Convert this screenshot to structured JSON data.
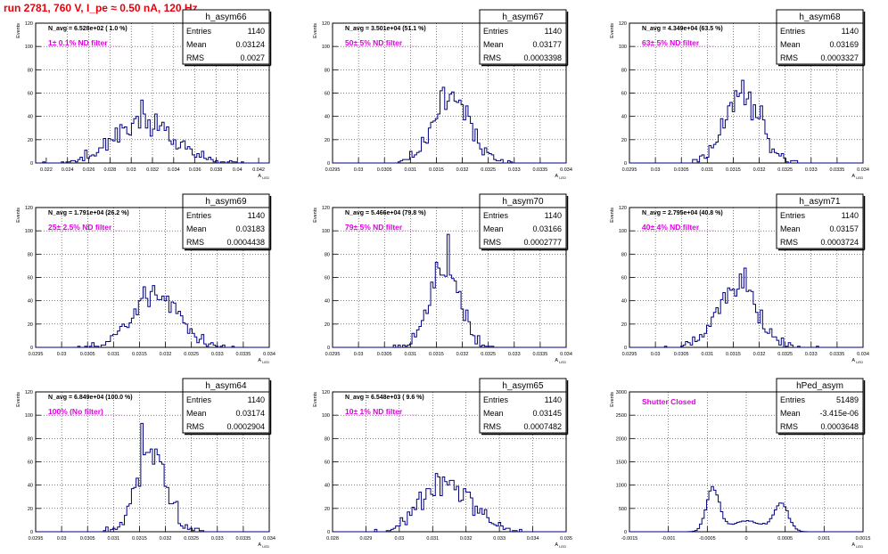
{
  "run_title": "run 2781,   760 V, I_pe ≈ 0.50 nA, 120 Hz",
  "stats_labels": {
    "entries": "Entries",
    "mean": "Mean",
    "rms": "RMS"
  },
  "colors": {
    "histogram": "#000080",
    "annotation": "#e000e0",
    "title": "#e8000b",
    "grid": "#000000"
  },
  "chart_data": [
    {
      "type": "bar",
      "name": "h_asym66",
      "navg": "N_avg = 6.528e+02 ( 1.0 %)",
      "label": "1± 0.1% ND filter",
      "entries": "1140",
      "mean": "0.03124",
      "rms": "0.0027",
      "xlabel": "A_LED",
      "ylabel": "Events",
      "xlim": [
        0.021,
        0.043
      ],
      "ylim": [
        0,
        120
      ],
      "xticks": [
        "0.022",
        "0.024",
        "0.026",
        "0.028",
        "0.03",
        "0.032",
        "0.034",
        "0.036",
        "0.038",
        "0.04",
        "0.042"
      ],
      "xtick_values": [
        0.022,
        0.024,
        0.026,
        0.028,
        0.03,
        0.032,
        0.034,
        0.036,
        0.038,
        0.04,
        0.042
      ],
      "yticks": [
        "0",
        "20",
        "40",
        "60",
        "80",
        "100",
        "120"
      ],
      "ytick_values": [
        0,
        20,
        40,
        60,
        80,
        100,
        120
      ],
      "dist": {
        "type": "gauss",
        "mean": 0.03124,
        "sigma": 0.0027,
        "count": 1140,
        "seed": 11
      }
    },
    {
      "type": "bar",
      "name": "h_asym67",
      "navg": "N_avg = 3.501e+04 (51.1 %)",
      "label": "50± 5% ND filter",
      "entries": "1140",
      "mean": "0.03177",
      "rms": "0.0003398",
      "xlabel": "A_LED",
      "ylabel": "Events",
      "xlim": [
        0.0295,
        0.034
      ],
      "ylim": [
        0,
        120
      ],
      "xticks": [
        "0.0295",
        "0.03",
        "0.0305",
        "0.031",
        "0.0315",
        "0.032",
        "0.0325",
        "0.033",
        "0.0335",
        "0.034"
      ],
      "xtick_values": [
        0.0295,
        0.03,
        0.0305,
        0.031,
        0.0315,
        0.032,
        0.0325,
        0.033,
        0.0335,
        0.034
      ],
      "yticks": [
        "0",
        "20",
        "40",
        "60",
        "80",
        "100",
        "120"
      ],
      "ytick_values": [
        0,
        20,
        40,
        60,
        80,
        100,
        120
      ],
      "dist": {
        "type": "gauss",
        "mean": 0.03177,
        "sigma": 0.0003398,
        "count": 1140,
        "seed": 23
      }
    },
    {
      "type": "bar",
      "name": "h_asym68",
      "navg": "N_avg = 4.349e+04 (63.5 %)",
      "label": "63± 5% ND filter",
      "entries": "1140",
      "mean": "0.03169",
      "rms": "0.0003327",
      "xlabel": "A_LED",
      "ylabel": "Events",
      "xlim": [
        0.0295,
        0.034
      ],
      "ylim": [
        0,
        120
      ],
      "xticks": [
        "0.0295",
        "0.03",
        "0.0305",
        "0.031",
        "0.0315",
        "0.032",
        "0.0325",
        "0.033",
        "0.0335",
        "0.034"
      ],
      "xtick_values": [
        0.0295,
        0.03,
        0.0305,
        0.031,
        0.0315,
        0.032,
        0.0325,
        0.033,
        0.0335,
        0.034
      ],
      "yticks": [
        "0",
        "20",
        "40",
        "60",
        "80",
        "100",
        "120"
      ],
      "ytick_values": [
        0,
        20,
        40,
        60,
        80,
        100,
        120
      ],
      "dist": {
        "type": "gauss",
        "mean": 0.03169,
        "sigma": 0.0003327,
        "count": 1140,
        "seed": 37
      }
    },
    {
      "type": "bar",
      "name": "h_asym69",
      "navg": "N_avg = 1.791e+04 (26.2 %)",
      "label": "25± 2.5% ND filter",
      "entries": "1140",
      "mean": "0.03183",
      "rms": "0.0004438",
      "xlabel": "A_LED",
      "ylabel": "Events",
      "xlim": [
        0.0295,
        0.034
      ],
      "ylim": [
        0,
        120
      ],
      "xticks": [
        "0.0295",
        "0.03",
        "0.0305",
        "0.031",
        "0.0315",
        "0.032",
        "0.0325",
        "0.033",
        "0.0335",
        "0.034"
      ],
      "xtick_values": [
        0.0295,
        0.03,
        0.0305,
        0.031,
        0.0315,
        0.032,
        0.0325,
        0.033,
        0.0335,
        0.034
      ],
      "yticks": [
        "0",
        "20",
        "40",
        "60",
        "80",
        "100",
        "120"
      ],
      "ytick_values": [
        0,
        20,
        40,
        60,
        80,
        100,
        120
      ],
      "dist": {
        "type": "gauss",
        "mean": 0.03183,
        "sigma": 0.0004438,
        "count": 1140,
        "seed": 41
      }
    },
    {
      "type": "bar",
      "name": "h_asym70",
      "navg": "N_avg = 5.466e+04 (79.8 %)",
      "label": "79± 5% ND filter",
      "entries": "1140",
      "mean": "0.03166",
      "rms": "0.0002777",
      "xlabel": "A_LED",
      "ylabel": "Events",
      "xlim": [
        0.0295,
        0.034
      ],
      "ylim": [
        0,
        120
      ],
      "xticks": [
        "0.0295",
        "0.03",
        "0.0305",
        "0.031",
        "0.0315",
        "0.032",
        "0.0325",
        "0.033",
        "0.0335",
        "0.034"
      ],
      "xtick_values": [
        0.0295,
        0.03,
        0.0305,
        0.031,
        0.0315,
        0.032,
        0.0325,
        0.033,
        0.0335,
        0.034
      ],
      "yticks": [
        "0",
        "20",
        "40",
        "60",
        "80",
        "100",
        "120"
      ],
      "ytick_values": [
        0,
        20,
        40,
        60,
        80,
        100,
        120
      ],
      "dist": {
        "type": "gauss",
        "mean": 0.03166,
        "sigma": 0.0002777,
        "count": 1140,
        "seed": 53
      }
    },
    {
      "type": "bar",
      "name": "h_asym71",
      "navg": "N_avg = 2.795e+04 (40.8 %)",
      "label": "40± 4% ND filter",
      "entries": "1140",
      "mean": "0.03157",
      "rms": "0.0003724",
      "xlabel": "A_LED",
      "ylabel": "Events",
      "xlim": [
        0.0295,
        0.034
      ],
      "ylim": [
        0,
        120
      ],
      "xticks": [
        "0.0295",
        "0.03",
        "0.0305",
        "0.031",
        "0.0315",
        "0.032",
        "0.0325",
        "0.033",
        "0.0335",
        "0.034"
      ],
      "xtick_values": [
        0.0295,
        0.03,
        0.0305,
        0.031,
        0.0315,
        0.032,
        0.0325,
        0.033,
        0.0335,
        0.034
      ],
      "yticks": [
        "0",
        "20",
        "40",
        "60",
        "80",
        "100",
        "120"
      ],
      "ytick_values": [
        0,
        20,
        40,
        60,
        80,
        100,
        120
      ],
      "dist": {
        "type": "gauss",
        "mean": 0.03157,
        "sigma": 0.0003724,
        "count": 1140,
        "seed": 67
      }
    },
    {
      "type": "bar",
      "name": "h_asym64",
      "navg": "N_avg = 6.849e+04 (100.0 %)",
      "label": "100% (No filter)",
      "entries": "1140",
      "mean": "0.03174",
      "rms": "0.0002904",
      "xlabel": "A_LED",
      "ylabel": "Events",
      "xlim": [
        0.0295,
        0.034
      ],
      "ylim": [
        0,
        120
      ],
      "xticks": [
        "0.0295",
        "0.03",
        "0.0305",
        "0.031",
        "0.0315",
        "0.032",
        "0.0325",
        "0.033",
        "0.0335",
        "0.034"
      ],
      "xtick_values": [
        0.0295,
        0.03,
        0.0305,
        0.031,
        0.0315,
        0.032,
        0.0325,
        0.033,
        0.0335,
        0.034
      ],
      "yticks": [
        "0",
        "20",
        "40",
        "60",
        "80",
        "100",
        "120"
      ],
      "ytick_values": [
        0,
        20,
        40,
        60,
        80,
        100,
        120
      ],
      "dist": {
        "type": "gauss",
        "mean": 0.03174,
        "sigma": 0.0002904,
        "count": 1140,
        "seed": 71
      }
    },
    {
      "type": "bar",
      "name": "h_asym65",
      "navg": "N_avg = 6.548e+03 ( 9.6 %)",
      "label": "10± 1% ND filter",
      "entries": "1140",
      "mean": "0.03145",
      "rms": "0.0007482",
      "xlabel": "A_LED",
      "ylabel": "Events",
      "xlim": [
        0.028,
        0.035
      ],
      "ylim": [
        0,
        120
      ],
      "xticks": [
        "0.028",
        "0.029",
        "0.03",
        "0.031",
        "0.032",
        "0.033",
        "0.034",
        "0.035"
      ],
      "xtick_values": [
        0.028,
        0.029,
        0.03,
        0.031,
        0.032,
        0.033,
        0.034,
        0.035
      ],
      "yticks": [
        "0",
        "20",
        "40",
        "60",
        "80",
        "100",
        "120"
      ],
      "ytick_values": [
        0,
        20,
        40,
        60,
        80,
        100,
        120
      ],
      "dist": {
        "type": "gauss",
        "mean": 0.03145,
        "sigma": 0.0007482,
        "count": 1140,
        "seed": 83
      }
    },
    {
      "type": "bar",
      "name": "hPed_asym",
      "navg": "",
      "label": "Shutter Closed",
      "entries": "51489",
      "mean": "-3.415e-06",
      "rms": "0.0003648",
      "xlabel": "A_LED",
      "ylabel": "Events",
      "xlim": [
        -0.0015,
        0.0015
      ],
      "ylim": [
        0,
        3000
      ],
      "xticks": [
        "-0.0015",
        "-0.001",
        "-0.0005",
        "0",
        "0.0005",
        "0.001",
        "0.0015"
      ],
      "xtick_values": [
        -0.0015,
        -0.001,
        -0.0005,
        0,
        0.0005,
        0.001,
        0.0015
      ],
      "yticks": [
        "0",
        "500",
        "1000",
        "1500",
        "2000",
        "2500",
        "3000"
      ],
      "ytick_values": [
        0,
        500,
        1000,
        1500,
        2000,
        2500,
        3000
      ],
      "dist": {
        "type": "bimodal",
        "components": [
          {
            "mean": -0.00043,
            "sigma": 8e-05,
            "weight": 0.42
          },
          {
            "mean": 0.00045,
            "sigma": 9e-05,
            "weight": 0.3
          },
          {
            "mean": 0.0,
            "sigma": 0.00022,
            "weight": 0.28
          }
        ],
        "count": 51489,
        "seed": 97
      }
    }
  ]
}
